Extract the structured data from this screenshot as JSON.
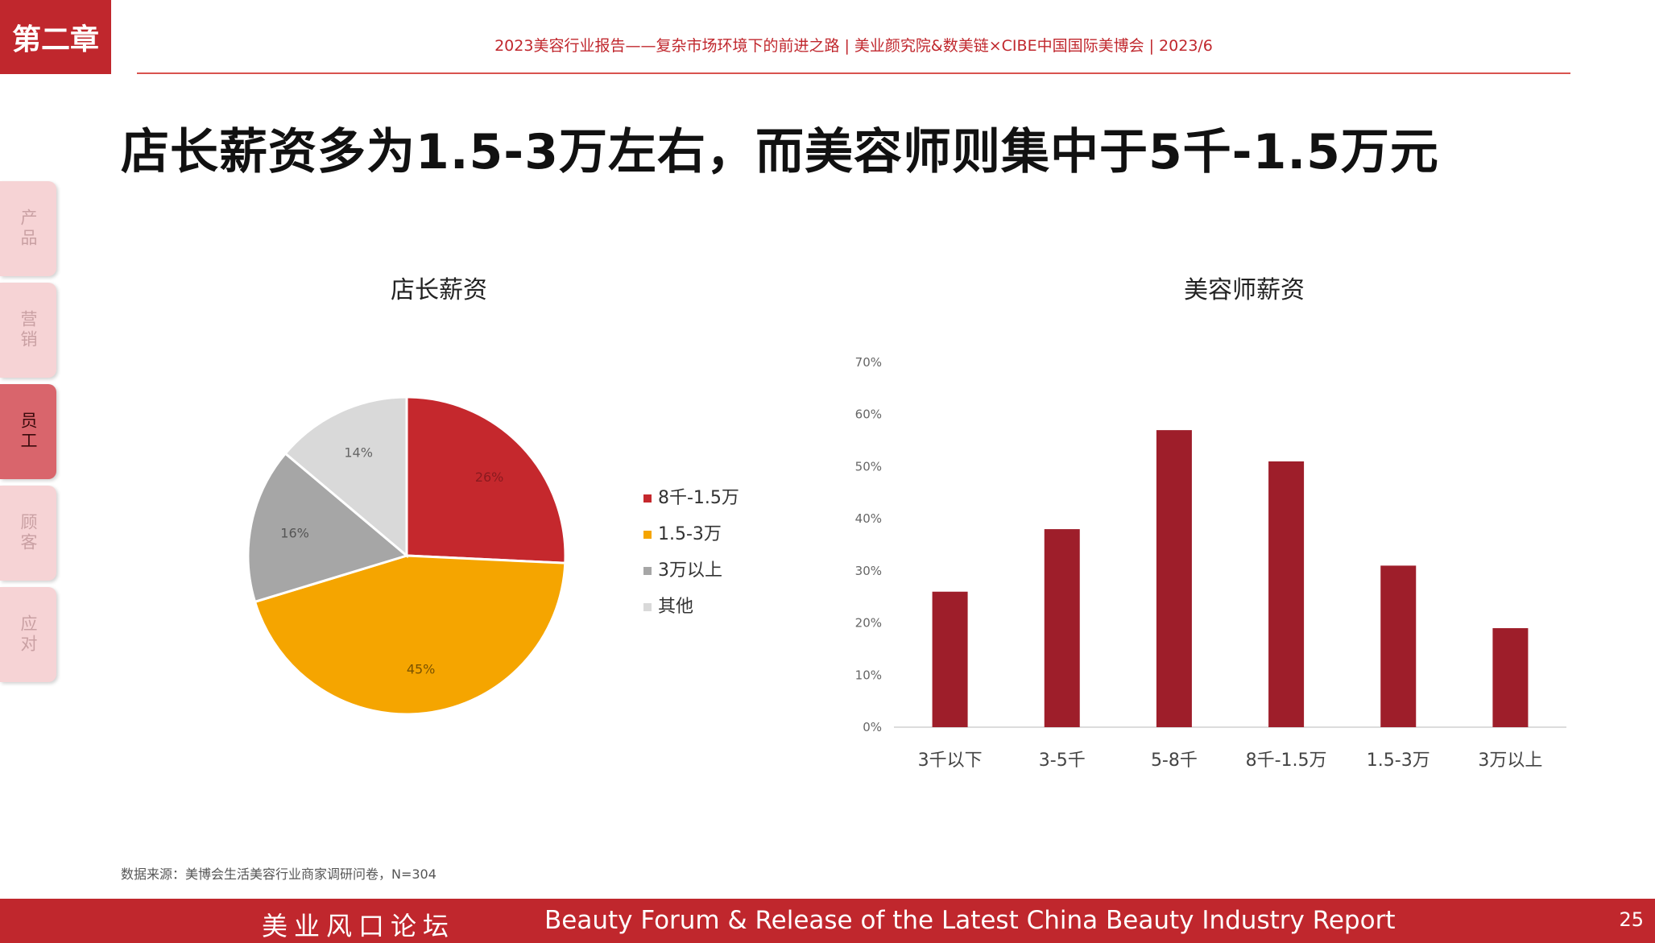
{
  "chapter_badge": "第二章",
  "header": "2023美容行业报告——复杂市场环境下的前进之路  |  美业颜究院&数美链×CIBE中国国际美博会  |  2023/6",
  "title": "店长薪资多为1.5-3万左右，而美容师则集中于5千-1.5万元",
  "side_tabs": [
    "产品",
    "营销",
    "员工",
    "顾客",
    "应对"
  ],
  "active_tab": "员工",
  "footnote": "数据来源：美博会生活美容行业商家调研问卷，N=304",
  "footer": {
    "left": "美业风口论坛",
    "right": "Beauty Forum & Release of the Latest China Beauty Industry Report",
    "page": "25"
  },
  "colors": {
    "brand_red": "#c0272d",
    "pie": [
      "#c5282d",
      "#f5a500",
      "#a6a6a6",
      "#d9d9d9"
    ],
    "bar": "#9e1e2a"
  },
  "chart_data": [
    {
      "type": "pie",
      "title": "店长薪资",
      "categories": [
        "8千-1.5万",
        "1.5-3万",
        "3万以上",
        "其他"
      ],
      "values": [
        26,
        45,
        16,
        14
      ],
      "labels": [
        "26%",
        "45%",
        "16%",
        "14%"
      ],
      "legend": "right"
    },
    {
      "type": "bar",
      "title": "美容师薪资",
      "categories": [
        "3千以下",
        "3-5千",
        "5-8千",
        "8千-1.5万",
        "1.5-3万",
        "3万以上"
      ],
      "values": [
        26,
        38,
        57,
        51,
        31,
        19
      ],
      "ylim": [
        0,
        70
      ],
      "yticks": [
        "0%",
        "10%",
        "20%",
        "30%",
        "40%",
        "50%",
        "60%",
        "70%"
      ],
      "grid": false
    }
  ]
}
